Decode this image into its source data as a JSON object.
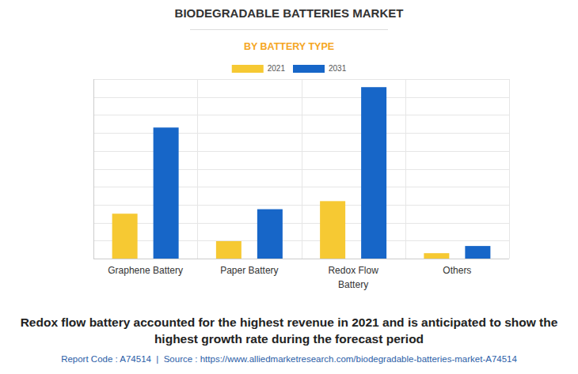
{
  "chart_data": {
    "type": "bar",
    "title": "BIODEGRADABLE BATTERIES MARKET",
    "subtitle": "BY BATTERY TYPE",
    "caption": "Redox flow battery accounted for the highest revenue in 2021 and is anticipated to show the highest growth rate during the forecast period",
    "footer": "Report Code : A74514  |  Source : https://www.alliedmarketresearch.com/biodegradable-batteries-market-A74514",
    "categories": [
      "Graphene Battery",
      "Paper Battery",
      "Redox Flow Battery",
      "Others"
    ],
    "series": [
      {
        "name": "2021",
        "color": "#f6c933",
        "values": [
          2.5,
          0.97,
          3.2,
          0.3
        ]
      },
      {
        "name": "2031",
        "color": "#1766c8",
        "values": [
          7.3,
          2.75,
          9.55,
          0.7
        ]
      }
    ],
    "ylim": [
      0,
      10
    ],
    "yticks": [
      0,
      1,
      2,
      3,
      4,
      5,
      6,
      7,
      8,
      9,
      10
    ],
    "grid": true,
    "legend": "top",
    "tick_labels": "x"
  }
}
